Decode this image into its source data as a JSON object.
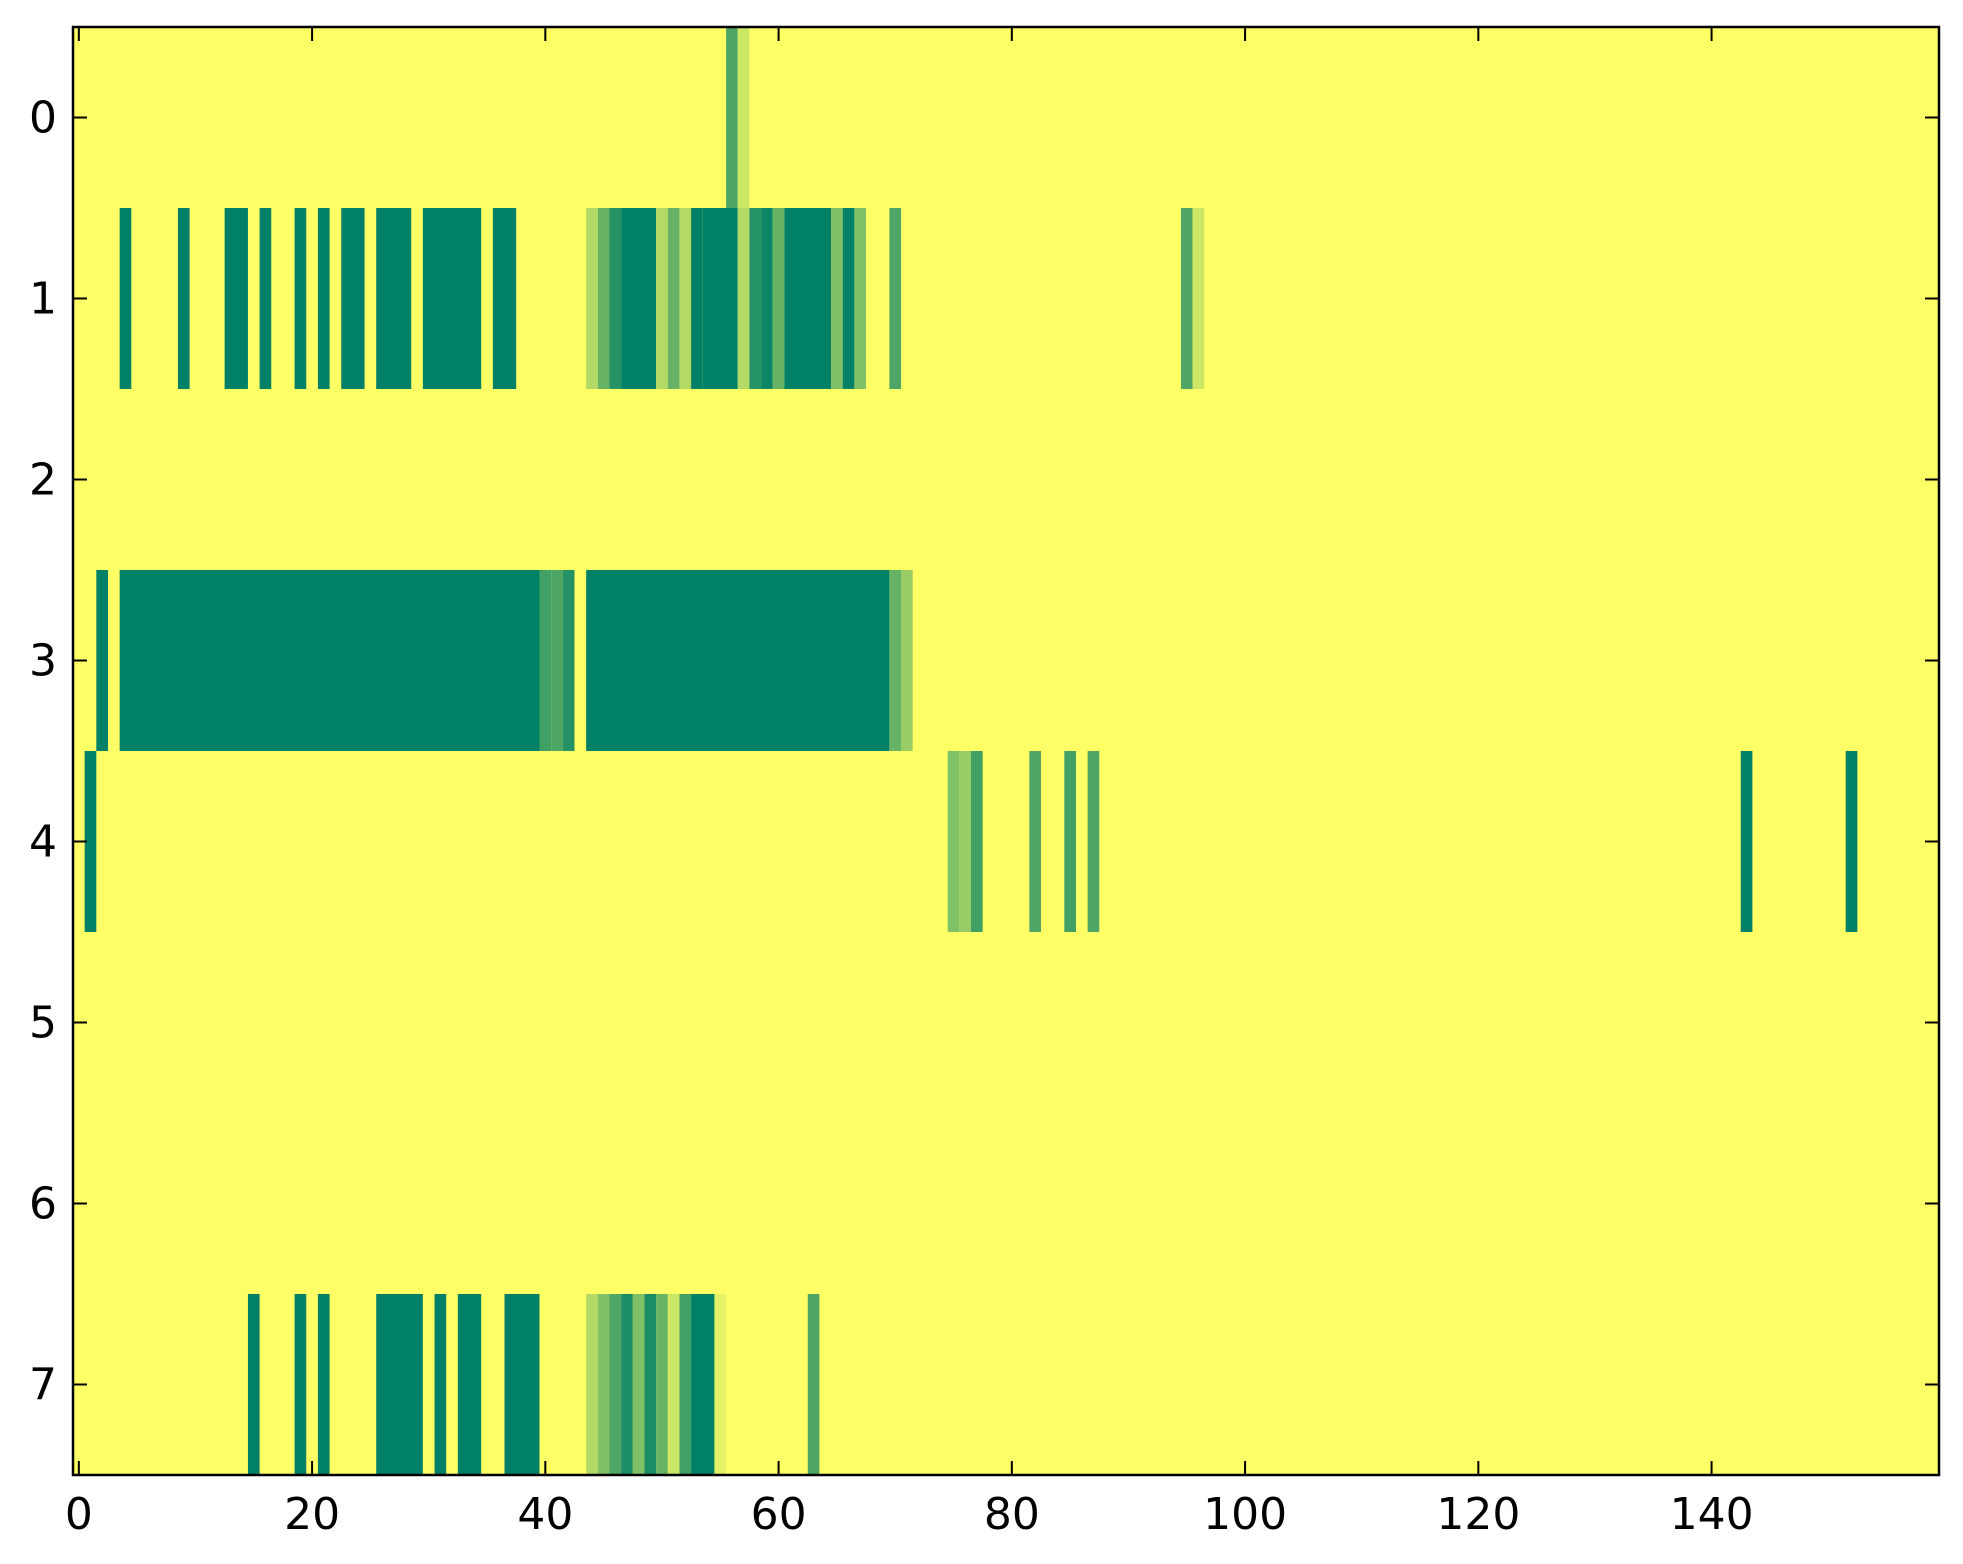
{
  "chart_data": {
    "type": "heatmap",
    "title": "",
    "xlabel": "",
    "ylabel": "",
    "xlim": [
      -0.5,
      159.5
    ],
    "ylim": [
      7.5,
      -0.5
    ],
    "x_ticks": [
      0,
      20,
      40,
      60,
      80,
      100,
      120,
      140
    ],
    "x_tick_labels": [
      "0",
      "20",
      "40",
      "60",
      "80",
      "100",
      "120",
      "140"
    ],
    "y_ticks": [
      0,
      1,
      2,
      3,
      4,
      5,
      6,
      7
    ],
    "y_tick_labels": [
      "0",
      "1",
      "2",
      "3",
      "4",
      "5",
      "6",
      "7"
    ],
    "n_rows": 8,
    "n_cols": 160,
    "background_value": 0,
    "colormap": "summer_r",
    "colors": {
      "low": "#ffff66",
      "high": "#008066",
      "axes": "#000000"
    },
    "grid": false,
    "legend": "none",
    "cells": [
      {
        "row": 0,
        "cols": [
          [
            56,
            56,
            0.7
          ],
          [
            57,
            57,
            0.2
          ]
        ]
      },
      {
        "row": 1,
        "cols": [
          [
            4,
            4,
            1
          ],
          [
            9,
            9,
            1
          ],
          [
            13,
            14,
            1
          ],
          [
            16,
            16,
            1
          ],
          [
            19,
            19,
            1
          ],
          [
            21,
            21,
            1
          ],
          [
            23,
            24,
            1
          ],
          [
            26,
            28,
            1
          ],
          [
            30,
            34,
            1
          ],
          [
            36,
            37,
            1
          ],
          [
            44,
            44,
            0.3
          ],
          [
            45,
            45,
            0.6
          ],
          [
            46,
            46,
            0.85
          ],
          [
            47,
            49,
            1
          ],
          [
            50,
            50,
            0.3
          ],
          [
            51,
            51,
            0.6
          ],
          [
            52,
            52,
            0.3
          ],
          [
            53,
            53,
            1
          ],
          [
            54,
            56,
            1
          ],
          [
            57,
            57,
            0.3
          ],
          [
            58,
            58,
            0.85
          ],
          [
            59,
            59,
            0.95
          ],
          [
            60,
            60,
            0.6
          ],
          [
            61,
            64,
            1
          ],
          [
            65,
            65,
            0.5
          ],
          [
            66,
            66,
            1
          ],
          [
            67,
            67,
            0.5
          ],
          [
            70,
            70,
            0.7
          ],
          [
            95,
            95,
            0.7
          ],
          [
            96,
            96,
            0.2
          ]
        ]
      },
      {
        "row": 3,
        "cols": [
          [
            2,
            2,
            1
          ],
          [
            4,
            39,
            1
          ],
          [
            40,
            40,
            0.75
          ],
          [
            41,
            41,
            0.7
          ],
          [
            42,
            42,
            0.85
          ],
          [
            44,
            69,
            1
          ],
          [
            70,
            70,
            0.6
          ],
          [
            71,
            71,
            0.4
          ]
        ]
      },
      {
        "row": 4,
        "cols": [
          [
            1,
            1,
            1
          ],
          [
            75,
            75,
            0.5
          ],
          [
            76,
            76,
            0.4
          ],
          [
            77,
            77,
            0.75
          ],
          [
            82,
            82,
            0.7
          ],
          [
            85,
            85,
            0.75
          ],
          [
            87,
            87,
            0.7
          ],
          [
            143,
            143,
            1
          ],
          [
            152,
            152,
            1
          ]
        ]
      },
      {
        "row": 7,
        "cols": [
          [
            15,
            15,
            1
          ],
          [
            19,
            19,
            1
          ],
          [
            21,
            21,
            1
          ],
          [
            26,
            29,
            1
          ],
          [
            31,
            31,
            1
          ],
          [
            33,
            34,
            1
          ],
          [
            37,
            39,
            1
          ],
          [
            44,
            44,
            0.3
          ],
          [
            45,
            45,
            0.5
          ],
          [
            46,
            46,
            0.7
          ],
          [
            47,
            47,
            0.9
          ],
          [
            48,
            48,
            0.5
          ],
          [
            49,
            49,
            0.9
          ],
          [
            50,
            50,
            0.6
          ],
          [
            51,
            51,
            0.2
          ],
          [
            52,
            52,
            0.75
          ],
          [
            53,
            54,
            1
          ],
          [
            55,
            55,
            0.1
          ],
          [
            63,
            63,
            0.7
          ]
        ]
      }
    ]
  }
}
